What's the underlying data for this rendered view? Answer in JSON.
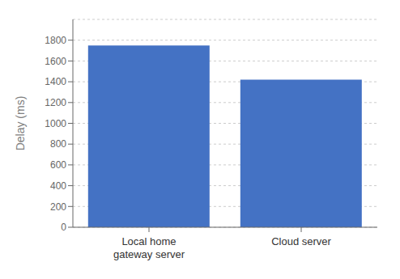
{
  "chart_data": {
    "type": "bar",
    "categories": [
      "Local home\ngateway server",
      "Cloud server"
    ],
    "values": [
      1750,
      1420
    ],
    "color": "#4472C4",
    "y_label": "Delay (ms)",
    "ylim": [
      0,
      2000
    ],
    "yticks": [
      0,
      200,
      400,
      600,
      800,
      1000,
      1200,
      1400,
      1600,
      1800
    ],
    "grid": true
  }
}
